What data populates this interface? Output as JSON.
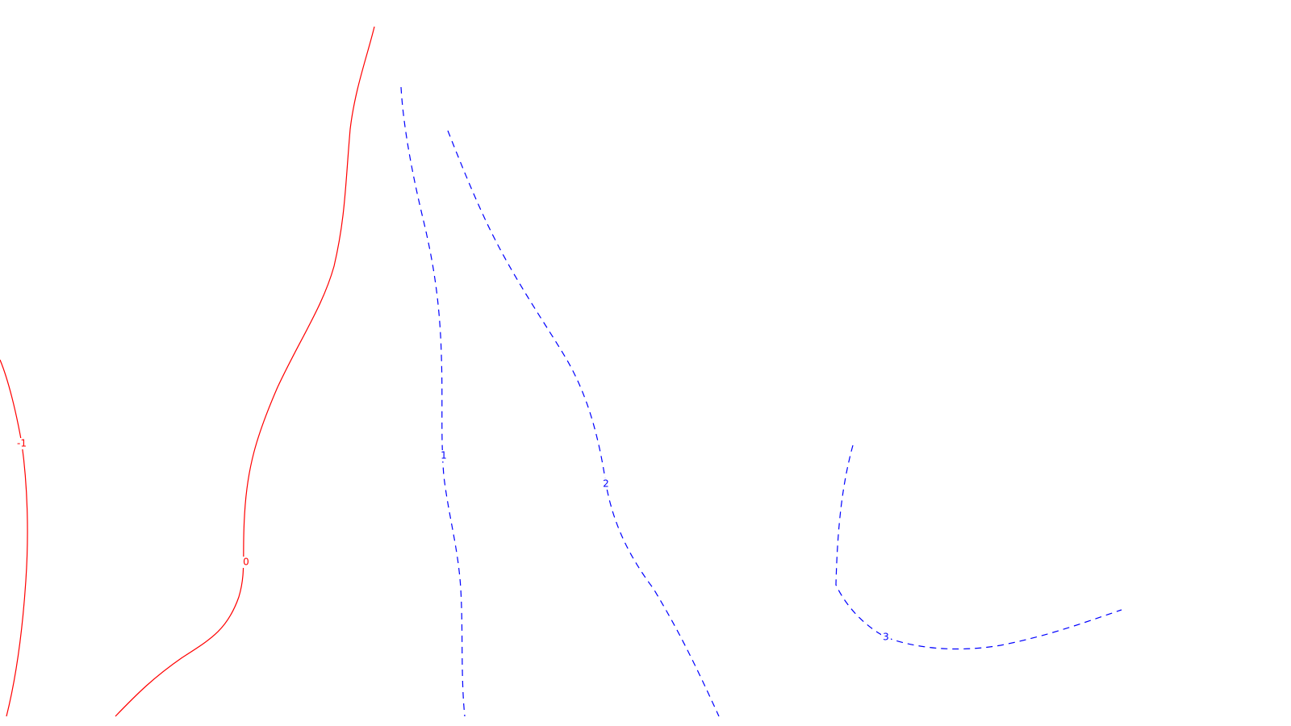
{
  "chart_data": {
    "type": "contour",
    "grid": false,
    "colors": {
      "negative": "#ff0000",
      "zero": "#ff0000",
      "positive": "#0000ff",
      "background": "#ffffff"
    },
    "line_styles": {
      "negative": "solid",
      "zero": "solid",
      "positive": "dashed"
    },
    "levels": [
      {
        "value": -1,
        "label": "-1"
      },
      {
        "value": 0,
        "label": "0"
      },
      {
        "value": 1,
        "label": "1"
      },
      {
        "value": 2,
        "label": "2"
      },
      {
        "value": 3,
        "label": "3"
      }
    ]
  }
}
